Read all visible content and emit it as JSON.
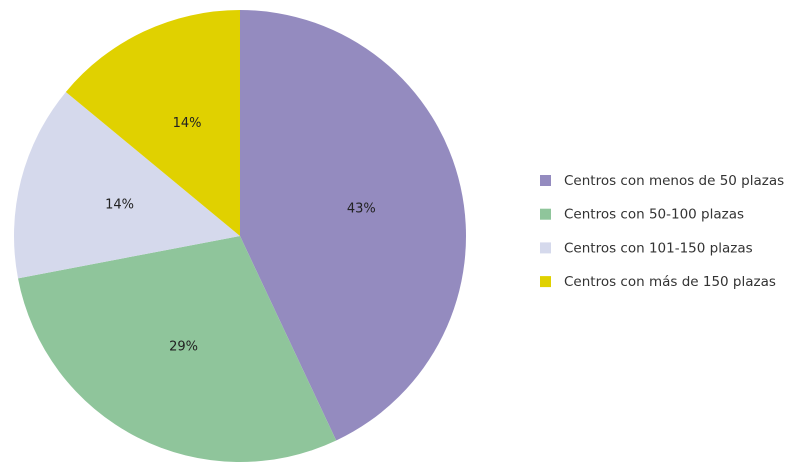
{
  "chart_data": {
    "type": "pie",
    "categories": [
      "Centros con menos de 50 plazas",
      "Centros con 50-100 plazas",
      "Centros con 101-150 plazas",
      "Centros con más de 150 plazas"
    ],
    "values": [
      43,
      29,
      14,
      14
    ],
    "value_labels": [
      "43%",
      "29%",
      "14%",
      "14%"
    ],
    "colors": [
      "#948bbf",
      "#8fc59b",
      "#d5d9ec",
      "#e0d100"
    ],
    "legend": "right"
  }
}
